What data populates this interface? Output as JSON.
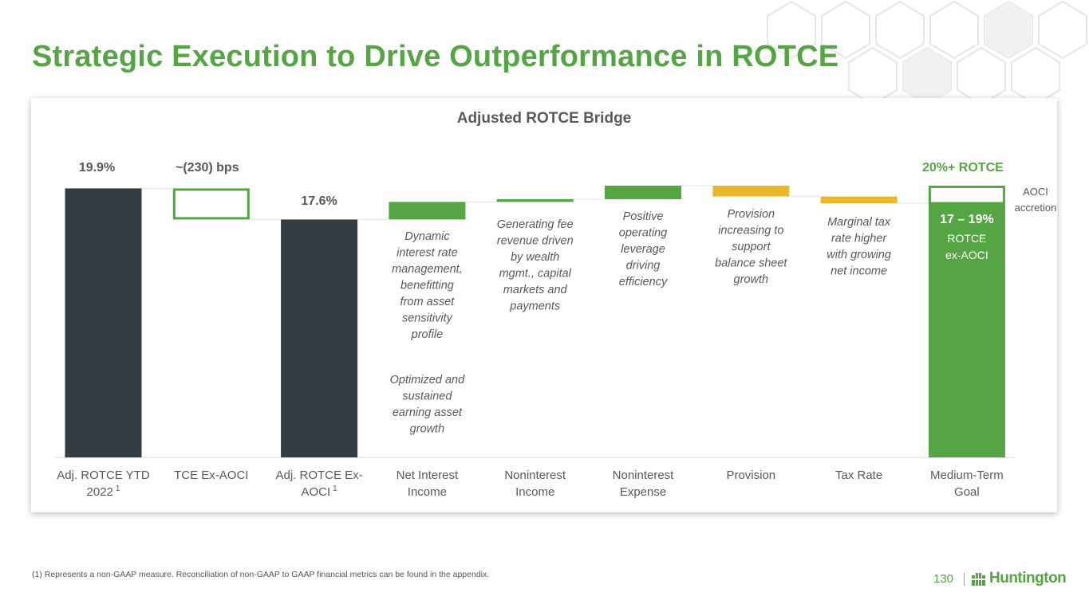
{
  "slide": {
    "title": "Strategic Execution to Drive Outperformance in ROTCE",
    "footnote": "(1) Represents a non-GAAP measure. Reconciliation of non-GAAP to GAAP financial metrics can be found in the appendix.",
    "page_number": "130",
    "logo_text": "Huntington"
  },
  "colors": {
    "dark": "#343c43",
    "green": "#56a545",
    "yellow": "#e8b828",
    "title_green": "#56a545"
  },
  "chart_data": {
    "type": "bar",
    "title": "Adjusted ROTCE Bridge",
    "categories": [
      {
        "line1": "Adj. ROTCE YTD",
        "line2": "2022",
        "sup": "1"
      },
      {
        "line1": "TCE Ex-AOCI",
        "line2": "",
        "sup": ""
      },
      {
        "line1": "Adj. ROTCE Ex-",
        "line2": "AOCI",
        "sup": "1"
      },
      {
        "line1": "Net Interest",
        "line2": "Income",
        "sup": ""
      },
      {
        "line1": "Noninterest",
        "line2": "Income",
        "sup": ""
      },
      {
        "line1": "Noninterest",
        "line2": "Expense",
        "sup": ""
      },
      {
        "line1": "Provision",
        "line2": "",
        "sup": ""
      },
      {
        "line1": "Tax Rate",
        "line2": "",
        "sup": ""
      },
      {
        "line1": "Medium-Term",
        "line2": "Goal",
        "sup": ""
      }
    ],
    "ylim": [
      0,
      20.1
    ],
    "bars": [
      {
        "kind": "total",
        "start": 0,
        "end": 19.9,
        "color": "dark",
        "label": "19.9%"
      },
      {
        "kind": "outline",
        "start": 17.6,
        "end": 19.9,
        "color": "green",
        "label": "~(230) bps"
      },
      {
        "kind": "total",
        "start": 0,
        "end": 17.6,
        "color": "dark",
        "label": "17.6%"
      },
      {
        "kind": "increase",
        "start": 17.6,
        "end": 18.9,
        "color": "green",
        "label": ""
      },
      {
        "kind": "increase",
        "start": 18.9,
        "end": 19.1,
        "color": "green",
        "label": ""
      },
      {
        "kind": "increase",
        "start": 19.1,
        "end": 20.1,
        "color": "green",
        "label": ""
      },
      {
        "kind": "decrease",
        "start": 20.1,
        "end": 19.3,
        "color": "yellow",
        "label": ""
      },
      {
        "kind": "decrease",
        "start": 19.3,
        "end": 18.8,
        "color": "yellow",
        "label": ""
      },
      {
        "kind": "goal",
        "start": 0,
        "end": 20.1,
        "split": 18.8,
        "color": "green",
        "label": "20%+ ROTCE"
      }
    ],
    "goal_inner": {
      "range": "17 – 19%",
      "line1": "ROTCE",
      "line2": "ex-AOCI"
    },
    "goal_side_label": [
      "AOCI",
      "accretion"
    ],
    "annotations": [
      {
        "bar": 3,
        "lines": [
          "Dynamic",
          "interest rate",
          "management,",
          "benefitting",
          "from asset",
          "sensitivity",
          "profile"
        ]
      },
      {
        "bar": 3,
        "lines": [
          "Optimized and",
          "sustained",
          "earning asset",
          "growth"
        ]
      },
      {
        "bar": 4,
        "lines": [
          "Generating fee",
          "revenue driven",
          "by wealth",
          "mgmt., capital",
          "markets and",
          "payments"
        ]
      },
      {
        "bar": 5,
        "lines": [
          "Positive",
          "operating",
          "leverage",
          "driving",
          "efficiency"
        ]
      },
      {
        "bar": 6,
        "lines": [
          "Provision",
          "increasing to",
          "support",
          "balance sheet",
          "growth"
        ]
      },
      {
        "bar": 7,
        "lines": [
          "Marginal tax",
          "rate higher",
          "with growing",
          "net income"
        ]
      }
    ]
  }
}
